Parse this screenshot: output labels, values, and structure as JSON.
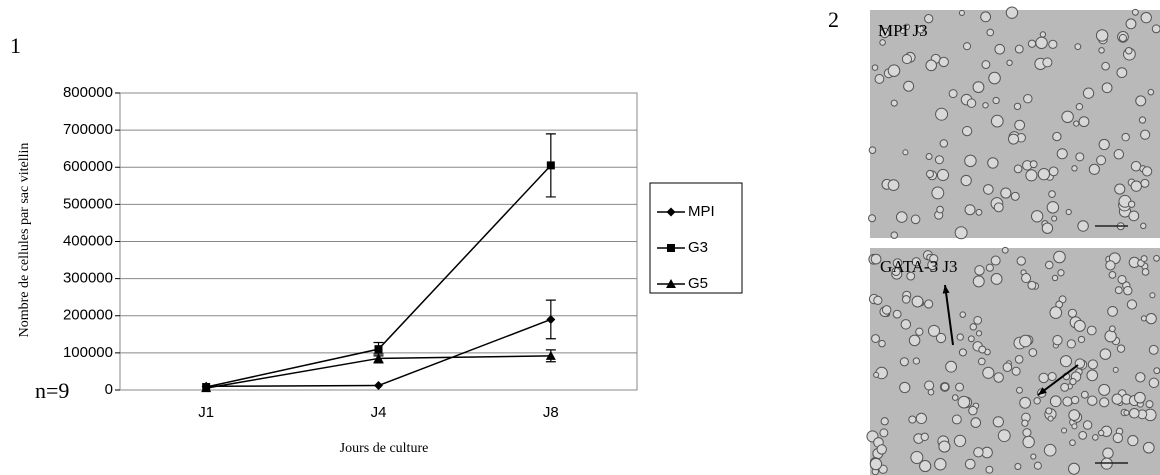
{
  "chart_data": {
    "type": "line",
    "y_label": "Nombre de cellules par sac vitellin",
    "x_label": "Jours de culture",
    "annotations": [
      "1",
      "n=9"
    ],
    "categories": [
      "J1",
      "J4",
      "J8"
    ],
    "series": [
      {
        "name": "MPI",
        "color": "#000000",
        "marker": "diamond",
        "values": [
          10000,
          12000,
          190000
        ],
        "errors": [
          null,
          null,
          52000
        ]
      },
      {
        "name": "G3",
        "color": "#000000",
        "marker": "square",
        "values": [
          8000,
          110000,
          605000
        ],
        "errors": [
          null,
          18000,
          85000
        ]
      },
      {
        "name": "G5",
        "color": "#000000",
        "marker": "triangle",
        "values": [
          5000,
          85000,
          92000
        ],
        "errors": [
          null,
          12000,
          16000
        ]
      }
    ],
    "ylim": [
      0,
      800000
    ],
    "yticks": [
      0,
      100000,
      200000,
      300000,
      400000,
      500000,
      600000,
      700000,
      800000
    ],
    "grid": true,
    "legend": "right"
  },
  "panel_2": {
    "label": "2",
    "images": [
      {
        "caption": "MPI J3"
      },
      {
        "caption": "GATA-3 J3"
      }
    ]
  }
}
